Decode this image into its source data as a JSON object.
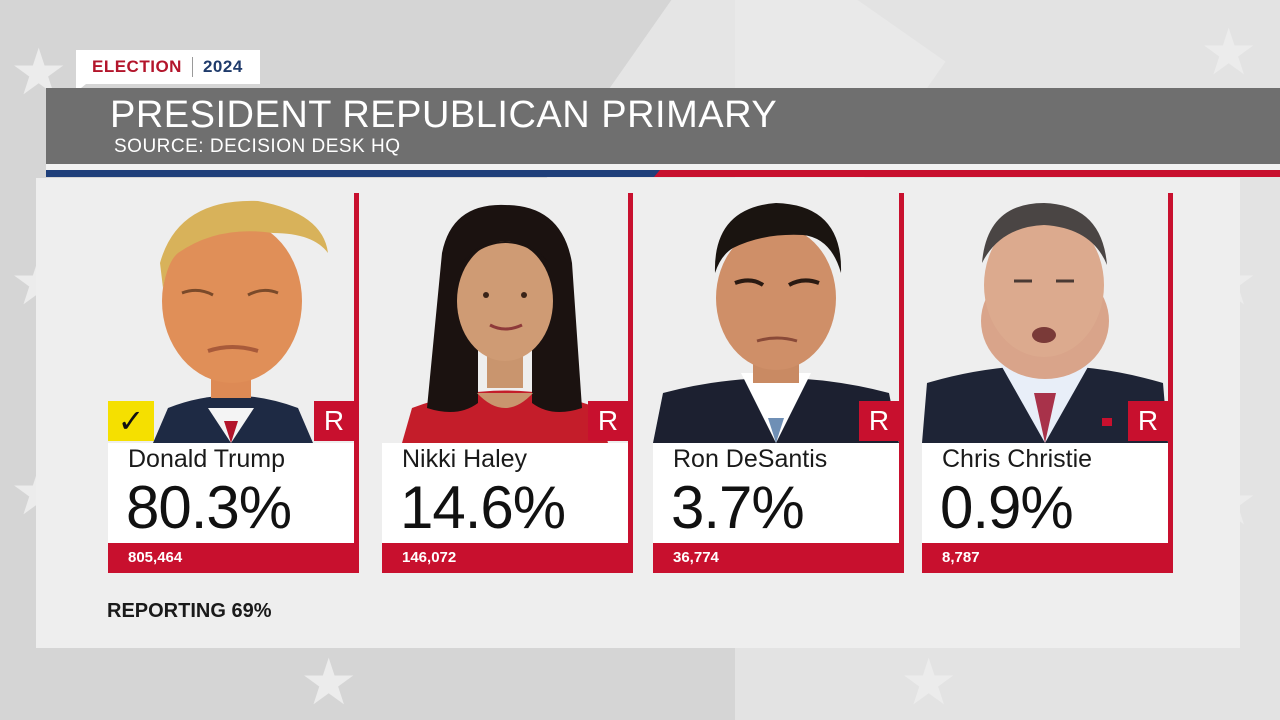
{
  "tag": {
    "election": "ELECTION",
    "year": "2024"
  },
  "header": {
    "title": "PRESIDENT REPUBLICAN PRIMARY",
    "source": "SOURCE: DECISION DESK HQ"
  },
  "candidates": [
    {
      "name": "Donald Trump",
      "pct": "80.3%",
      "votes": "805,464",
      "party": "R",
      "winner": true
    },
    {
      "name": "Nikki Haley",
      "pct": "14.6%",
      "votes": "146,072",
      "party": "R",
      "winner": false
    },
    {
      "name": "Ron DeSantis",
      "pct": "3.7%",
      "votes": "36,774",
      "party": "R",
      "winner": false
    },
    {
      "name": "Chris Christie",
      "pct": "0.9%",
      "votes": "8,787",
      "party": "R",
      "winner": false
    }
  ],
  "reporting": "REPORTING 69%",
  "colors": {
    "party_red": "#c8102e",
    "header_gray": "#6f6f6f",
    "stripe_blue": "#1f3f7a",
    "winner_yellow": "#f5e000"
  },
  "icons": {
    "winner": "checkmark-icon"
  }
}
